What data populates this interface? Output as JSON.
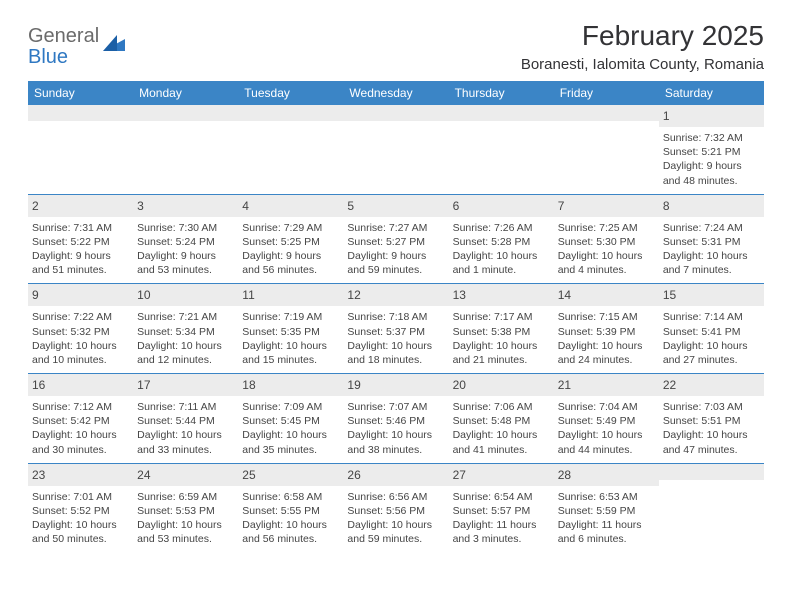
{
  "brand": {
    "line1": "General",
    "line2": "Blue"
  },
  "title": "February 2025",
  "location": "Boranesti, Ialomita County, Romania",
  "dow": [
    "Sunday",
    "Monday",
    "Tuesday",
    "Wednesday",
    "Thursday",
    "Friday",
    "Saturday"
  ],
  "colors": {
    "header_bar": "#3b85c6",
    "daynum_bg": "#ececec",
    "text": "#454545",
    "title": "#333336",
    "brand_gray": "#6b6b6b",
    "brand_blue": "#2f78c2"
  },
  "weeks": [
    [
      {
        "n": "",
        "sr": "",
        "ss": "",
        "dl": ""
      },
      {
        "n": "",
        "sr": "",
        "ss": "",
        "dl": ""
      },
      {
        "n": "",
        "sr": "",
        "ss": "",
        "dl": ""
      },
      {
        "n": "",
        "sr": "",
        "ss": "",
        "dl": ""
      },
      {
        "n": "",
        "sr": "",
        "ss": "",
        "dl": ""
      },
      {
        "n": "",
        "sr": "",
        "ss": "",
        "dl": ""
      },
      {
        "n": "1",
        "sr": "Sunrise: 7:32 AM",
        "ss": "Sunset: 5:21 PM",
        "dl": "Daylight: 9 hours and 48 minutes."
      }
    ],
    [
      {
        "n": "2",
        "sr": "Sunrise: 7:31 AM",
        "ss": "Sunset: 5:22 PM",
        "dl": "Daylight: 9 hours and 51 minutes."
      },
      {
        "n": "3",
        "sr": "Sunrise: 7:30 AM",
        "ss": "Sunset: 5:24 PM",
        "dl": "Daylight: 9 hours and 53 minutes."
      },
      {
        "n": "4",
        "sr": "Sunrise: 7:29 AM",
        "ss": "Sunset: 5:25 PM",
        "dl": "Daylight: 9 hours and 56 minutes."
      },
      {
        "n": "5",
        "sr": "Sunrise: 7:27 AM",
        "ss": "Sunset: 5:27 PM",
        "dl": "Daylight: 9 hours and 59 minutes."
      },
      {
        "n": "6",
        "sr": "Sunrise: 7:26 AM",
        "ss": "Sunset: 5:28 PM",
        "dl": "Daylight: 10 hours and 1 minute."
      },
      {
        "n": "7",
        "sr": "Sunrise: 7:25 AM",
        "ss": "Sunset: 5:30 PM",
        "dl": "Daylight: 10 hours and 4 minutes."
      },
      {
        "n": "8",
        "sr": "Sunrise: 7:24 AM",
        "ss": "Sunset: 5:31 PM",
        "dl": "Daylight: 10 hours and 7 minutes."
      }
    ],
    [
      {
        "n": "9",
        "sr": "Sunrise: 7:22 AM",
        "ss": "Sunset: 5:32 PM",
        "dl": "Daylight: 10 hours and 10 minutes."
      },
      {
        "n": "10",
        "sr": "Sunrise: 7:21 AM",
        "ss": "Sunset: 5:34 PM",
        "dl": "Daylight: 10 hours and 12 minutes."
      },
      {
        "n": "11",
        "sr": "Sunrise: 7:19 AM",
        "ss": "Sunset: 5:35 PM",
        "dl": "Daylight: 10 hours and 15 minutes."
      },
      {
        "n": "12",
        "sr": "Sunrise: 7:18 AM",
        "ss": "Sunset: 5:37 PM",
        "dl": "Daylight: 10 hours and 18 minutes."
      },
      {
        "n": "13",
        "sr": "Sunrise: 7:17 AM",
        "ss": "Sunset: 5:38 PM",
        "dl": "Daylight: 10 hours and 21 minutes."
      },
      {
        "n": "14",
        "sr": "Sunrise: 7:15 AM",
        "ss": "Sunset: 5:39 PM",
        "dl": "Daylight: 10 hours and 24 minutes."
      },
      {
        "n": "15",
        "sr": "Sunrise: 7:14 AM",
        "ss": "Sunset: 5:41 PM",
        "dl": "Daylight: 10 hours and 27 minutes."
      }
    ],
    [
      {
        "n": "16",
        "sr": "Sunrise: 7:12 AM",
        "ss": "Sunset: 5:42 PM",
        "dl": "Daylight: 10 hours and 30 minutes."
      },
      {
        "n": "17",
        "sr": "Sunrise: 7:11 AM",
        "ss": "Sunset: 5:44 PM",
        "dl": "Daylight: 10 hours and 33 minutes."
      },
      {
        "n": "18",
        "sr": "Sunrise: 7:09 AM",
        "ss": "Sunset: 5:45 PM",
        "dl": "Daylight: 10 hours and 35 minutes."
      },
      {
        "n": "19",
        "sr": "Sunrise: 7:07 AM",
        "ss": "Sunset: 5:46 PM",
        "dl": "Daylight: 10 hours and 38 minutes."
      },
      {
        "n": "20",
        "sr": "Sunrise: 7:06 AM",
        "ss": "Sunset: 5:48 PM",
        "dl": "Daylight: 10 hours and 41 minutes."
      },
      {
        "n": "21",
        "sr": "Sunrise: 7:04 AM",
        "ss": "Sunset: 5:49 PM",
        "dl": "Daylight: 10 hours and 44 minutes."
      },
      {
        "n": "22",
        "sr": "Sunrise: 7:03 AM",
        "ss": "Sunset: 5:51 PM",
        "dl": "Daylight: 10 hours and 47 minutes."
      }
    ],
    [
      {
        "n": "23",
        "sr": "Sunrise: 7:01 AM",
        "ss": "Sunset: 5:52 PM",
        "dl": "Daylight: 10 hours and 50 minutes."
      },
      {
        "n": "24",
        "sr": "Sunrise: 6:59 AM",
        "ss": "Sunset: 5:53 PM",
        "dl": "Daylight: 10 hours and 53 minutes."
      },
      {
        "n": "25",
        "sr": "Sunrise: 6:58 AM",
        "ss": "Sunset: 5:55 PM",
        "dl": "Daylight: 10 hours and 56 minutes."
      },
      {
        "n": "26",
        "sr": "Sunrise: 6:56 AM",
        "ss": "Sunset: 5:56 PM",
        "dl": "Daylight: 10 hours and 59 minutes."
      },
      {
        "n": "27",
        "sr": "Sunrise: 6:54 AM",
        "ss": "Sunset: 5:57 PM",
        "dl": "Daylight: 11 hours and 3 minutes."
      },
      {
        "n": "28",
        "sr": "Sunrise: 6:53 AM",
        "ss": "Sunset: 5:59 PM",
        "dl": "Daylight: 11 hours and 6 minutes."
      },
      {
        "n": "",
        "sr": "",
        "ss": "",
        "dl": ""
      }
    ]
  ]
}
